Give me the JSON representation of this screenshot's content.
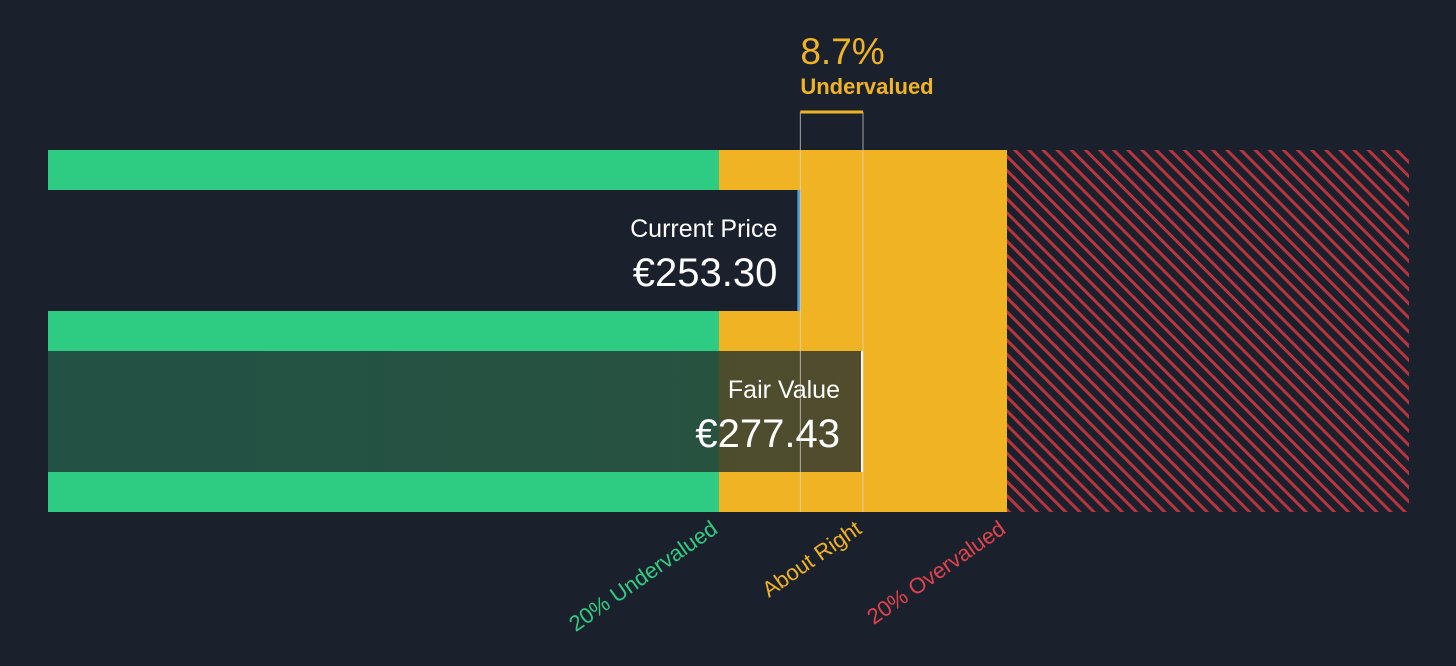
{
  "chart_data": {
    "type": "valuation",
    "current_price": {
      "label": "Current Price",
      "value": 253.3,
      "value_label": "€253.30"
    },
    "fair_value": {
      "label": "Fair Value",
      "value": 277.43,
      "value_label": "€277.43"
    },
    "discount": {
      "value": 8.7,
      "value_label": "8.7%",
      "label": "Undervalued"
    },
    "zones": [
      {
        "label": "20% Undervalued",
        "color": "#2ecc82"
      },
      {
        "label": "About Right",
        "color": "#f0b323"
      },
      {
        "label": "20% Overvalued",
        "color": "#e2424d"
      }
    ]
  }
}
